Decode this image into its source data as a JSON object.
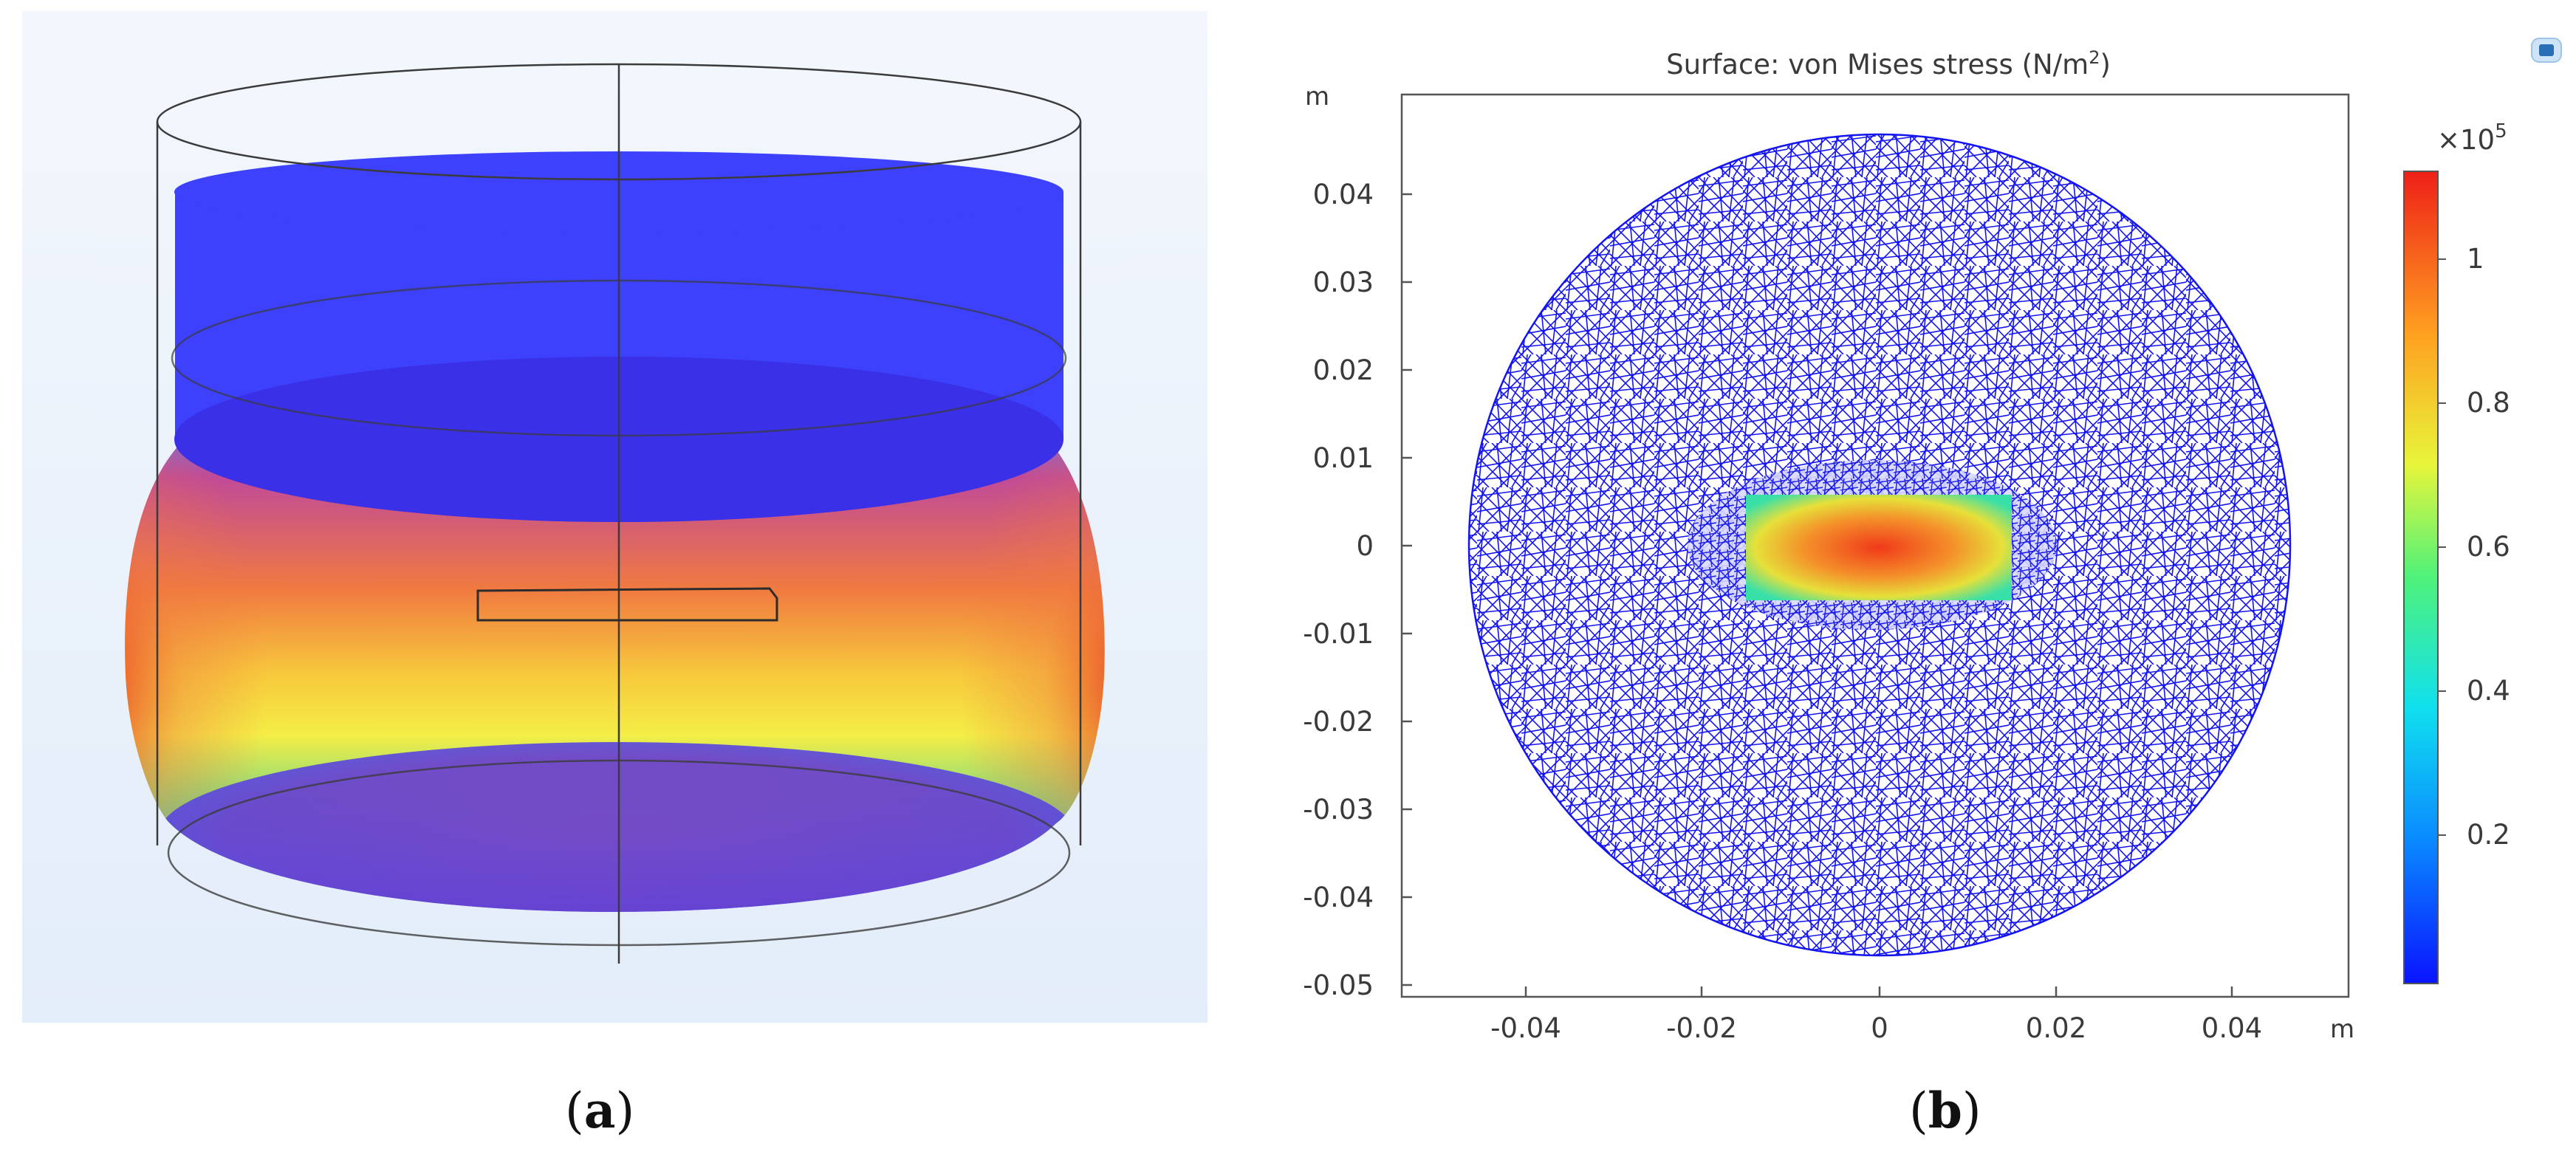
{
  "captions": {
    "a_open": "(",
    "a_letter": "a",
    "a_close": ")",
    "b_open": "(",
    "b_letter": "b",
    "b_close": ")"
  },
  "plot_b": {
    "title_main": "Surface: von Mises stress (N/m",
    "title_sup": "2",
    "title_close": ")",
    "y_unit": "m",
    "x_unit": "m",
    "y_ticks": [
      "0.04",
      "0.03",
      "0.02",
      "0.01",
      "0",
      "-0.01",
      "-0.02",
      "-0.03",
      "-0.04",
      "-0.05"
    ],
    "x_ticks": [
      "-0.04",
      "-0.02",
      "0",
      "0.02",
      "0.04"
    ],
    "colorbar_multiplier": "×10",
    "colorbar_exponent": "5",
    "colorbar_ticks": [
      "1",
      "0.8",
      "0.6",
      "0.4",
      "0.2"
    ]
  },
  "colors": {
    "model_top_blue": "#3d41fb",
    "mesh_blue": "#1010f0",
    "hot_red": "#e8321e",
    "background_a": "#e9f1fb"
  }
}
